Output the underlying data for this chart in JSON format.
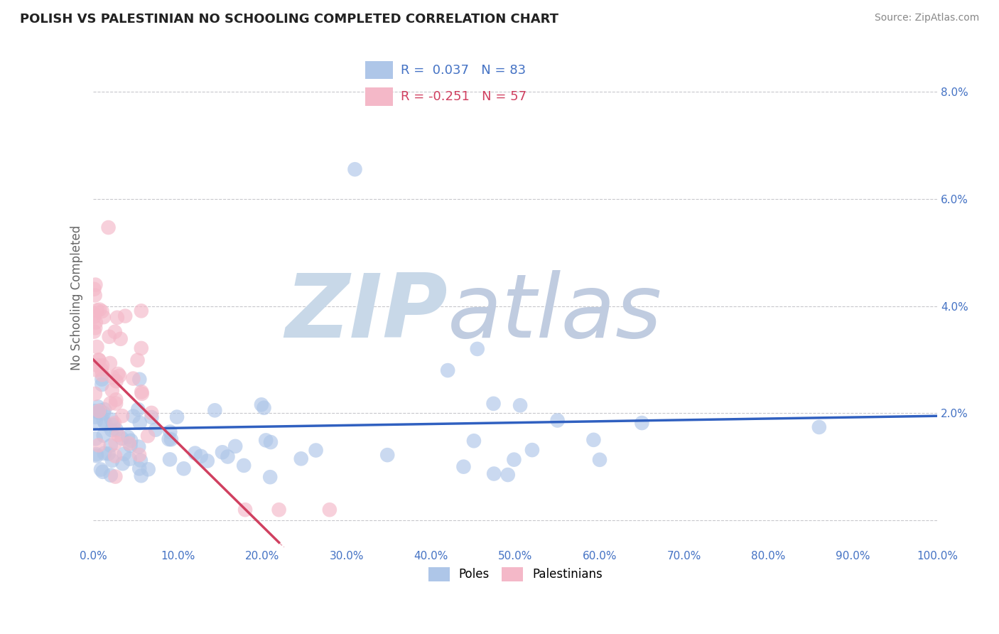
{
  "title": "POLISH VS PALESTINIAN NO SCHOOLING COMPLETED CORRELATION CHART",
  "source": "Source: ZipAtlas.com",
  "ylabel": "No Schooling Completed",
  "xlim": [
    0,
    1.0
  ],
  "ylim": [
    -0.005,
    0.088
  ],
  "xticks": [
    0.0,
    0.1,
    0.2,
    0.3,
    0.4,
    0.5,
    0.6,
    0.7,
    0.8,
    0.9,
    1.0
  ],
  "xticklabels": [
    "0.0%",
    "10.0%",
    "20.0%",
    "30.0%",
    "40.0%",
    "50.0%",
    "60.0%",
    "70.0%",
    "80.0%",
    "90.0%",
    "100.0%"
  ],
  "yticks": [
    0.0,
    0.02,
    0.04,
    0.06,
    0.08
  ],
  "yticklabels": [
    "",
    "2.0%",
    "4.0%",
    "6.0%",
    "8.0%"
  ],
  "poles_color": "#aec6e8",
  "palestinians_color": "#f4b8c8",
  "poles_line_color": "#3060c0",
  "palestinians_line_color": "#d04060",
  "ytick_color": "#4472c4",
  "xtick_color": "#4472c4",
  "R_poles": 0.037,
  "N_poles": 83,
  "R_palestinians": -0.251,
  "N_palestinians": 57,
  "watermark_zip": "ZIP",
  "watermark_atlas": "atlas",
  "watermark_color_zip": "#c8d8e8",
  "watermark_color_atlas": "#c0cce0",
  "grid_color": "#c8c8cc",
  "background_color": "#ffffff",
  "legend_color_poles": "#4472c4",
  "legend_color_palestinians": "#d04060"
}
